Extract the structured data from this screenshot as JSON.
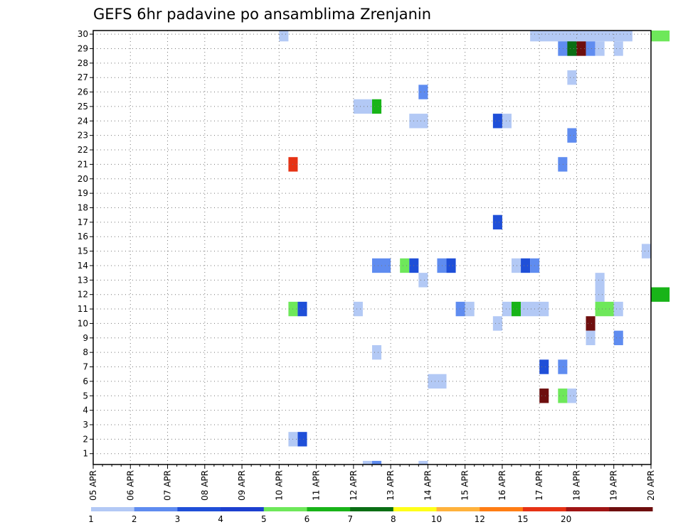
{
  "chart_data": {
    "type": "heatmap",
    "title": "GEFS 6hr padavine po ansamblima Zrenjanin",
    "xlabel": "",
    "ylabel": "",
    "x_tick_labels": [
      "05 APR",
      "06 APR",
      "07 APR",
      "08 APR",
      "09 APR",
      "10 APR",
      "11 APR",
      "12 APR",
      "13 APR",
      "14 APR",
      "15 APR",
      "16 APR",
      "17 APR",
      "18 APR",
      "19 APR",
      "20 APR"
    ],
    "xlim_days": [
      0,
      15
    ],
    "time_step_hours": 6,
    "y_tick_labels": [
      "1",
      "2",
      "3",
      "4",
      "5",
      "6",
      "7",
      "8",
      "9",
      "10",
      "11",
      "12",
      "13",
      "14",
      "15",
      "16",
      "17",
      "18",
      "19",
      "20",
      "21",
      "22",
      "23",
      "24",
      "25",
      "26",
      "27",
      "28",
      "29",
      "30"
    ],
    "ylim": [
      0.25,
      30.25
    ],
    "grid": true,
    "legend": {
      "placement": "bottom",
      "levels": [
        "1",
        "2",
        "3",
        "4",
        "5",
        "6",
        "7",
        "8",
        "10",
        "12",
        "15",
        "20"
      ],
      "colors": [
        "#b3c9f5",
        "#5f8cf0",
        "#1f4fd8",
        "#1c3fcf",
        "#6ee85a",
        "#18b418",
        "#0a6e14",
        "#ffff1a",
        "#ffb23c",
        "#ff7d14",
        "#e63214",
        "#a01414",
        "#6e0e0e"
      ]
    },
    "series": [
      {
        "member": 30,
        "cells": [
          [
            5,
            0.25,
            1
          ],
          [
            11.75,
            1,
            1
          ],
          [
            12.5,
            2,
            1
          ],
          [
            15,
            0.5,
            5
          ]
        ]
      },
      {
        "member": 29,
        "cells": [
          [
            12.5,
            0.5,
            2
          ],
          [
            12.75,
            0.25,
            7
          ],
          [
            13,
            0.25,
            20
          ],
          [
            13.25,
            0.25,
            2
          ],
          [
            13.5,
            0.25,
            1
          ],
          [
            14,
            0.25,
            1
          ]
        ]
      },
      {
        "member": 27,
        "cells": [
          [
            12.75,
            0.25,
            1
          ]
        ]
      },
      {
        "member": 26,
        "cells": [
          [
            8.75,
            0.25,
            2
          ]
        ]
      },
      {
        "member": 25,
        "cells": [
          [
            7,
            0.5,
            1
          ],
          [
            7.5,
            0.25,
            6
          ]
        ]
      },
      {
        "member": 24,
        "cells": [
          [
            8.5,
            0.5,
            1
          ],
          [
            10.75,
            0.25,
            3
          ],
          [
            11,
            0.25,
            1
          ]
        ]
      },
      {
        "member": 23,
        "cells": [
          [
            12.75,
            0.25,
            2
          ]
        ]
      },
      {
        "member": 21,
        "cells": [
          [
            5.25,
            0.25,
            15
          ],
          [
            12.5,
            0.25,
            2
          ]
        ]
      },
      {
        "member": 17,
        "cells": [
          [
            10.75,
            0.25,
            3
          ]
        ]
      },
      {
        "member": 15,
        "cells": [
          [
            14.75,
            0.25,
            1
          ]
        ]
      },
      {
        "member": 14,
        "cells": [
          [
            7.5,
            0.5,
            2
          ],
          [
            8.25,
            0.25,
            5
          ],
          [
            8.5,
            0.25,
            3
          ],
          [
            9.25,
            0.25,
            2
          ],
          [
            9.5,
            0.25,
            3
          ],
          [
            11.25,
            0.25,
            1
          ],
          [
            11.5,
            0.25,
            3
          ],
          [
            11.75,
            0.25,
            2
          ]
        ]
      },
      {
        "member": 13,
        "cells": [
          [
            8.75,
            0.25,
            1
          ],
          [
            13.5,
            0.25,
            1
          ]
        ]
      },
      {
        "member": 12,
        "cells": [
          [
            13.5,
            0.25,
            1
          ],
          [
            15,
            0.5,
            6
          ]
        ]
      },
      {
        "member": 11,
        "cells": [
          [
            5.25,
            0.25,
            5
          ],
          [
            5.5,
            0.25,
            3
          ],
          [
            7,
            0.25,
            1
          ],
          [
            9.75,
            0.25,
            2
          ],
          [
            10,
            0.25,
            1
          ],
          [
            11,
            0.25,
            1
          ],
          [
            11.25,
            0.25,
            6
          ],
          [
            11.5,
            0.75,
            1
          ],
          [
            13.5,
            0.5,
            5
          ],
          [
            14,
            0.25,
            1
          ]
        ]
      },
      {
        "member": 10,
        "cells": [
          [
            10.75,
            0.25,
            1
          ],
          [
            13.25,
            0.25,
            20
          ]
        ]
      },
      {
        "member": 9,
        "cells": [
          [
            13.25,
            0.25,
            1
          ],
          [
            14,
            0.25,
            2
          ]
        ]
      },
      {
        "member": 8,
        "cells": [
          [
            7.5,
            0.25,
            1
          ]
        ]
      },
      {
        "member": 7,
        "cells": [
          [
            12,
            0.25,
            3
          ],
          [
            12.5,
            0.25,
            2
          ]
        ]
      },
      {
        "member": 6,
        "cells": [
          [
            9,
            0.5,
            1
          ]
        ]
      },
      {
        "member": 5,
        "cells": [
          [
            12,
            0.25,
            20
          ],
          [
            12.5,
            0.25,
            5
          ],
          [
            12.75,
            0.25,
            1
          ]
        ]
      },
      {
        "member": 2,
        "cells": [
          [
            5.25,
            0.25,
            1
          ],
          [
            5.5,
            0.25,
            3
          ]
        ]
      },
      {
        "member": 0,
        "cells": [
          [
            7.25,
            0.25,
            1
          ],
          [
            7.5,
            0.25,
            2
          ],
          [
            8.75,
            0.25,
            1
          ]
        ]
      }
    ]
  }
}
